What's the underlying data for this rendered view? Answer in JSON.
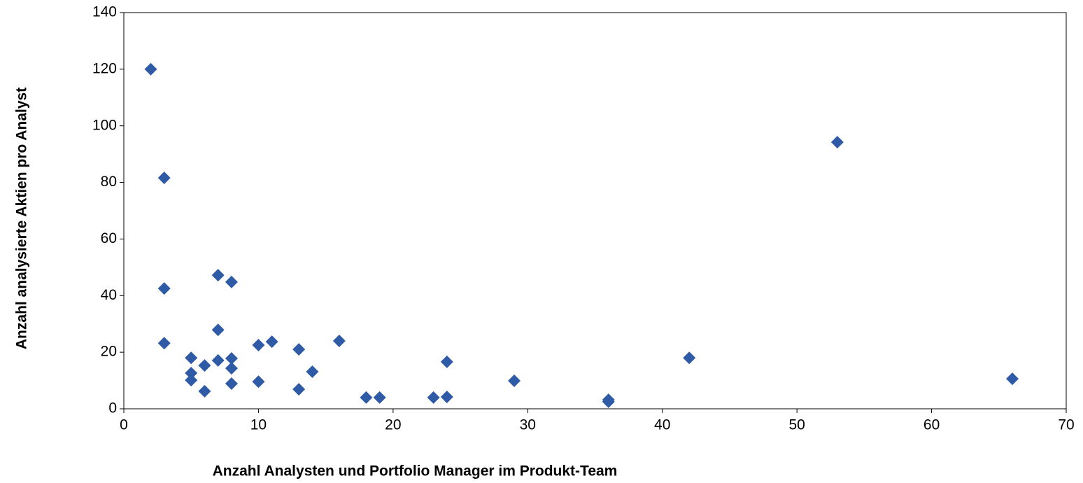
{
  "chart_data": {
    "type": "scatter",
    "x_label": "Anzahl Analysten und Portfolio Manager im Produkt-Team",
    "y_label": "Anzahl analysierte Aktien pro Analyst",
    "color": "#2f5aa6",
    "xlim": [
      0,
      70
    ],
    "xticks": [
      0,
      10,
      20,
      30,
      40,
      50,
      60,
      70
    ],
    "ylim": [
      0,
      140
    ],
    "yticks": [
      0,
      20,
      40,
      60,
      80,
      100,
      120,
      140
    ],
    "x": [
      2,
      3,
      3,
      3,
      5,
      5,
      5,
      6,
      6,
      7,
      7,
      7,
      8,
      8,
      8,
      8,
      10,
      10,
      11,
      13,
      13,
      14,
      16,
      18,
      19,
      23,
      24,
      24,
      29,
      36,
      36,
      42,
      53,
      66
    ],
    "y": [
      120,
      81.6,
      42.5,
      23.2,
      18,
      12.6,
      10.1,
      15.3,
      6.2,
      47.2,
      27.9,
      17.1,
      44.8,
      17.8,
      14.3,
      8.9,
      22.5,
      9.6,
      23.7,
      21,
      6.9,
      13.1,
      24,
      4,
      4,
      4,
      16.6,
      4.2,
      9.9,
      3.2,
      2.5,
      18,
      94.2,
      10.6
    ]
  }
}
